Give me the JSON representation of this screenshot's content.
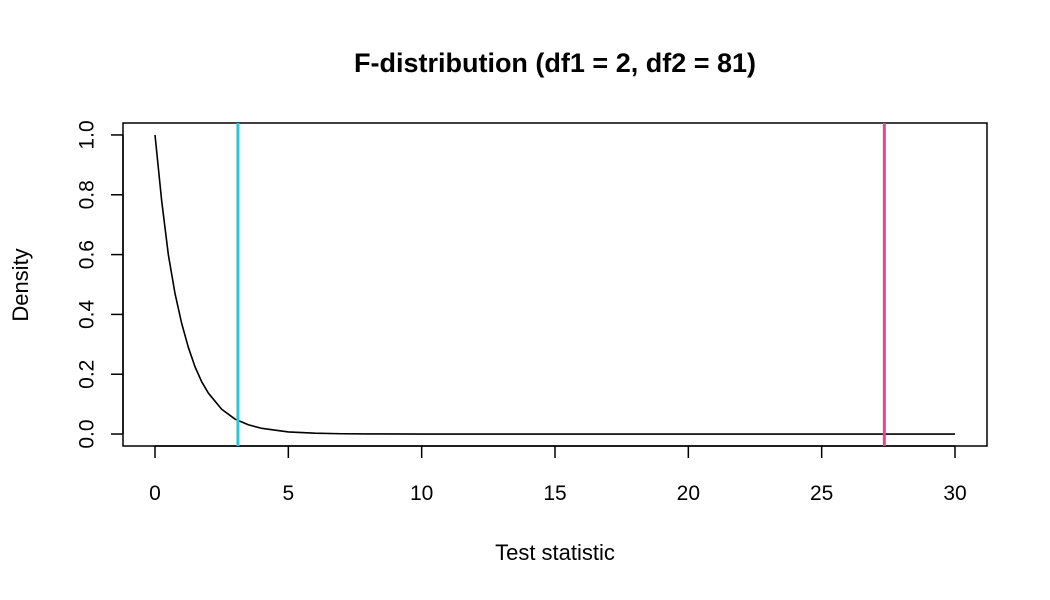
{
  "chart_data": {
    "type": "line",
    "title": "F-distribution (df1 = 2, df2 = 81)",
    "xlabel": "Test statistic",
    "ylabel": "Density",
    "xlim": [
      -1.2,
      31.2
    ],
    "ylim": [
      -0.04,
      1.04
    ],
    "x_ticks": [
      0,
      5,
      10,
      15,
      20,
      25,
      30
    ],
    "y_ticks": [
      0.0,
      0.2,
      0.4,
      0.6,
      0.8,
      1.0
    ],
    "x_tick_labels": [
      "0",
      "5",
      "10",
      "15",
      "20",
      "25",
      "30"
    ],
    "y_tick_labels": [
      "0.0",
      "0.2",
      "0.4",
      "0.6",
      "0.8",
      "1.0"
    ],
    "grid": false,
    "series": [
      {
        "color": "#000000",
        "points": [
          [
            0,
            1.0
          ],
          [
            0.25,
            0.78
          ],
          [
            0.5,
            0.6
          ],
          [
            0.75,
            0.47
          ],
          [
            1.0,
            0.37
          ],
          [
            1.25,
            0.29
          ],
          [
            1.5,
            0.225
          ],
          [
            1.75,
            0.175
          ],
          [
            2.0,
            0.137
          ],
          [
            2.5,
            0.083
          ],
          [
            3.0,
            0.05
          ],
          [
            3.5,
            0.031
          ],
          [
            4.0,
            0.019
          ],
          [
            5.0,
            0.007
          ],
          [
            6.0,
            0.0027
          ],
          [
            7.0,
            0.001
          ],
          [
            8.0,
            0.0004
          ],
          [
            10.0,
            0.0
          ],
          [
            15.0,
            0.0
          ],
          [
            20.0,
            0.0
          ],
          [
            25.0,
            0.0
          ],
          [
            30.0,
            0.0
          ]
        ]
      }
    ],
    "vlines": [
      {
        "x": 3.11,
        "color": "#2ec4d8"
      },
      {
        "x": 27.35,
        "color": "#e8488a"
      }
    ]
  }
}
